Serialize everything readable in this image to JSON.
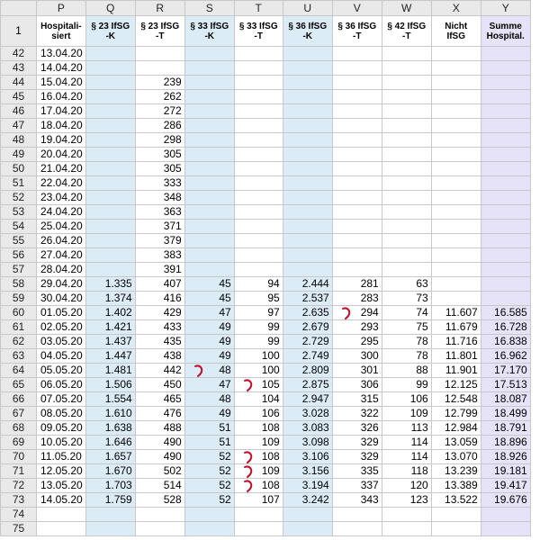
{
  "columns": [
    "P",
    "Q",
    "R",
    "S",
    "T",
    "U",
    "V",
    "W",
    "X",
    "Y"
  ],
  "header_row_num": "1",
  "headers": [
    "Hospitali-siert",
    "§ 23 IfSG -K",
    "§ 23 IfSG -T",
    "§ 33 IfSG -K",
    "§ 33 IfSG -T",
    "§ 36 IfSG -K",
    "§ 36 IfSG -T",
    "§ 42 IfSG -T",
    "Nicht IfSG",
    "Summe Hospital."
  ],
  "rows": [
    {
      "n": "42",
      "d": "13.04.20",
      "v": [
        "",
        "",
        "",
        "",
        "",
        "",
        "",
        "",
        ""
      ]
    },
    {
      "n": "43",
      "d": "14.04.20",
      "v": [
        "",
        "",
        "",
        "",
        "",
        "",
        "",
        "",
        ""
      ]
    },
    {
      "n": "44",
      "d": "15.04.20",
      "v": [
        "",
        "239",
        "",
        "",
        "",
        "",
        "",
        "",
        ""
      ]
    },
    {
      "n": "45",
      "d": "16.04.20",
      "v": [
        "",
        "262",
        "",
        "",
        "",
        "",
        "",
        "",
        ""
      ]
    },
    {
      "n": "46",
      "d": "17.04.20",
      "v": [
        "",
        "272",
        "",
        "",
        "",
        "",
        "",
        "",
        ""
      ]
    },
    {
      "n": "47",
      "d": "18.04.20",
      "v": [
        "",
        "286",
        "",
        "",
        "",
        "",
        "",
        "",
        ""
      ]
    },
    {
      "n": "48",
      "d": "19.04.20",
      "v": [
        "",
        "298",
        "",
        "",
        "",
        "",
        "",
        "",
        ""
      ]
    },
    {
      "n": "49",
      "d": "20.04.20",
      "v": [
        "",
        "305",
        "",
        "",
        "",
        "",
        "",
        "",
        ""
      ]
    },
    {
      "n": "50",
      "d": "21.04.20",
      "v": [
        "",
        "305",
        "",
        "",
        "",
        "",
        "",
        "",
        ""
      ]
    },
    {
      "n": "51",
      "d": "22.04.20",
      "v": [
        "",
        "333",
        "",
        "",
        "",
        "",
        "",
        "",
        ""
      ]
    },
    {
      "n": "52",
      "d": "23.04.20",
      "v": [
        "",
        "348",
        "",
        "",
        "",
        "",
        "",
        "",
        ""
      ]
    },
    {
      "n": "53",
      "d": "24.04.20",
      "v": [
        "",
        "363",
        "",
        "",
        "",
        "",
        "",
        "",
        ""
      ]
    },
    {
      "n": "54",
      "d": "25.04.20",
      "v": [
        "",
        "371",
        "",
        "",
        "",
        "",
        "",
        "",
        ""
      ]
    },
    {
      "n": "55",
      "d": "26.04.20",
      "v": [
        "",
        "379",
        "",
        "",
        "",
        "",
        "",
        "",
        ""
      ]
    },
    {
      "n": "56",
      "d": "27.04.20",
      "v": [
        "",
        "383",
        "",
        "",
        "",
        "",
        "",
        "",
        ""
      ]
    },
    {
      "n": "57",
      "d": "28.04.20",
      "v": [
        "",
        "391",
        "",
        "",
        "",
        "",
        "",
        "",
        ""
      ]
    },
    {
      "n": "58",
      "d": "29.04.20",
      "v": [
        "1.335",
        "407",
        "45",
        "94",
        "2.444",
        "281",
        "63",
        "",
        ""
      ]
    },
    {
      "n": "59",
      "d": "30.04.20",
      "v": [
        "1.374",
        "416",
        "45",
        "95",
        "2.537",
        "283",
        "73",
        "",
        ""
      ]
    },
    {
      "n": "60",
      "d": "01.05.20",
      "v": [
        "1.402",
        "429",
        "47",
        "97",
        "2.635",
        "294",
        "74",
        "11.607",
        "16.585"
      ]
    },
    {
      "n": "61",
      "d": "02.05.20",
      "v": [
        "1.421",
        "433",
        "49",
        "99",
        "2.679",
        "293",
        "75",
        "11.679",
        "16.728"
      ]
    },
    {
      "n": "62",
      "d": "03.05.20",
      "v": [
        "1.437",
        "435",
        "49",
        "99",
        "2.729",
        "295",
        "78",
        "11.716",
        "16.838"
      ]
    },
    {
      "n": "63",
      "d": "04.05.20",
      "v": [
        "1.447",
        "438",
        "49",
        "100",
        "2.749",
        "300",
        "78",
        "11.801",
        "16.962"
      ]
    },
    {
      "n": "64",
      "d": "05.05.20",
      "v": [
        "1.481",
        "442",
        "48",
        "100",
        "2.809",
        "301",
        "88",
        "11.901",
        "17.170"
      ]
    },
    {
      "n": "65",
      "d": "06.05.20",
      "v": [
        "1.506",
        "450",
        "47",
        "105",
        "2.875",
        "306",
        "99",
        "12.125",
        "17.513"
      ]
    },
    {
      "n": "66",
      "d": "07.05.20",
      "v": [
        "1.554",
        "465",
        "48",
        "104",
        "2.947",
        "315",
        "106",
        "12.548",
        "18.087"
      ]
    },
    {
      "n": "67",
      "d": "08.05.20",
      "v": [
        "1.610",
        "476",
        "49",
        "106",
        "3.028",
        "322",
        "109",
        "12.799",
        "18.499"
      ]
    },
    {
      "n": "68",
      "d": "09.05.20",
      "v": [
        "1.638",
        "488",
        "51",
        "108",
        "3.083",
        "326",
        "113",
        "12.984",
        "18.791"
      ]
    },
    {
      "n": "69",
      "d": "10.05.20",
      "v": [
        "1.646",
        "490",
        "51",
        "109",
        "3.098",
        "329",
        "114",
        "13.059",
        "18.896"
      ]
    },
    {
      "n": "70",
      "d": "11.05.20",
      "v": [
        "1.657",
        "490",
        "52",
        "108",
        "3.106",
        "329",
        "114",
        "13.070",
        "18.926"
      ]
    },
    {
      "n": "71",
      "d": "12.05.20",
      "v": [
        "1.670",
        "502",
        "52",
        "109",
        "3.156",
        "335",
        "118",
        "13.239",
        "19.181"
      ]
    },
    {
      "n": "72",
      "d": "13.05.20",
      "v": [
        "1.703",
        "514",
        "52",
        "108",
        "3.194",
        "337",
        "120",
        "13.389",
        "19.417"
      ]
    },
    {
      "n": "73",
      "d": "14.05.20",
      "v": [
        "1.759",
        "528",
        "52",
        "107",
        "3.242",
        "343",
        "123",
        "13.522",
        "19.676"
      ]
    },
    {
      "n": "74",
      "d": "",
      "v": [
        "",
        "",
        "",
        "",
        "",
        "",
        "",
        "",
        ""
      ]
    },
    {
      "n": "75",
      "d": "",
      "v": [
        "",
        "",
        "",
        "",
        "",
        "",
        "",
        "",
        ""
      ]
    }
  ],
  "accent_colors": {
    "blue": "#dcecf7",
    "lavender": "#e6e2f7",
    "marker": "#c0102a"
  },
  "markers": [
    {
      "row": "60",
      "col": "V"
    },
    {
      "row": "64",
      "col": "S"
    },
    {
      "row": "65",
      "col": "T"
    },
    {
      "row": "70",
      "col": "T"
    },
    {
      "row": "71",
      "col": "T"
    },
    {
      "row": "72",
      "col": "T"
    }
  ]
}
